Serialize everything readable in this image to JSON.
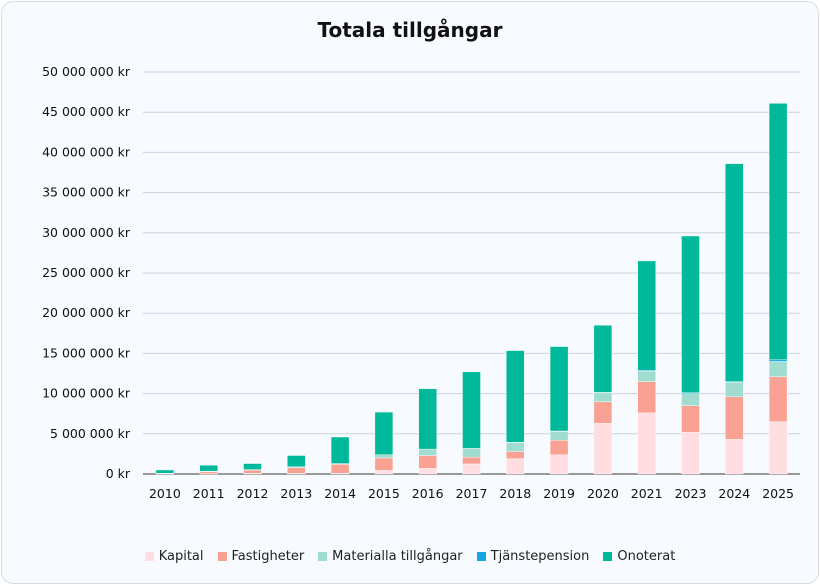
{
  "chart_data": {
    "type": "bar",
    "stacked": true,
    "title": "Totala tillgångar",
    "xlabel": "",
    "ylabel": "",
    "ylim": [
      0,
      50000000
    ],
    "yticks": [
      0,
      5000000,
      10000000,
      15000000,
      20000000,
      25000000,
      30000000,
      35000000,
      40000000,
      45000000,
      50000000
    ],
    "ytick_labels": [
      "0 kr",
      "5 000 000 kr",
      "10 000 000 kr",
      "15 000 000 kr",
      "20 000 000 kr",
      "25 000 000 kr",
      "30 000 000 kr",
      "35 000 000 kr",
      "40 000 000 kr",
      "45 000 000 kr",
      "50 000 000 kr"
    ],
    "grid": true,
    "legend_position": "bottom",
    "categories": [
      "2010",
      "2011",
      "2012",
      "2013",
      "2014",
      "2015",
      "2016",
      "2017",
      "2018",
      "2019",
      "2020",
      "2021",
      "2023",
      "2024",
      "2025"
    ],
    "series": [
      {
        "name": "Kapital",
        "color": "#ffdde1",
        "values": [
          50000,
          50000,
          100000,
          100000,
          100000,
          450000,
          700000,
          1250000,
          1900000,
          2400000,
          6300000,
          7600000,
          5200000,
          4300000,
          6500000
        ]
      },
      {
        "name": "Fastigheter",
        "color": "#f9a193",
        "values": [
          50000,
          250000,
          400000,
          700000,
          1100000,
          1550000,
          1600000,
          850000,
          900000,
          1800000,
          2700000,
          3900000,
          3300000,
          5300000,
          5600000
        ]
      },
      {
        "name": "Materialla tillgångar",
        "color": "#a0dccf",
        "values": [
          0,
          50000,
          50000,
          100000,
          100000,
          400000,
          800000,
          1100000,
          1100000,
          1100000,
          1100000,
          1300000,
          1500000,
          1800000,
          1900000
        ]
      },
      {
        "name": "Tjänstepension",
        "color": "#13a8e0",
        "values": [
          0,
          0,
          0,
          0,
          0,
          0,
          0,
          0,
          50000,
          50000,
          50000,
          100000,
          100000,
          100000,
          200000
        ]
      },
      {
        "name": "Onoterat",
        "color": "#00b89a",
        "values": [
          400000,
          750000,
          750000,
          1400000,
          3300000,
          5300000,
          7500000,
          9500000,
          11400000,
          10500000,
          8350000,
          13600000,
          19500000,
          27100000,
          31900000
        ]
      }
    ]
  }
}
